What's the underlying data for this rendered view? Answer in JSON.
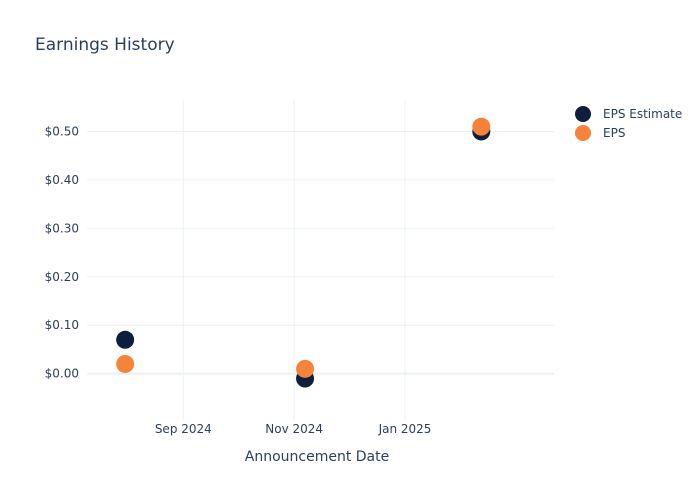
{
  "chart_data": {
    "type": "scatter",
    "title": "Earnings History",
    "xlabel": "Announcement Date",
    "ylabel": "",
    "x_ticks": [
      "Sep 2024",
      "Nov 2024",
      "Jan 2025"
    ],
    "x_tick_dates": [
      "2024-09-01",
      "2024-11-01",
      "2025-01-01"
    ],
    "y_ticks": [
      "$0.00",
      "$0.10",
      "$0.20",
      "$0.30",
      "$0.40",
      "$0.50"
    ],
    "y_tick_values": [
      0.0,
      0.1,
      0.2,
      0.3,
      0.4,
      0.5
    ],
    "xlim": [
      "2024-07-10",
      "2025-03-24"
    ],
    "ylim": [
      -0.075,
      0.565
    ],
    "grid": true,
    "legend_position": "top-right",
    "series": [
      {
        "name": "EPS Estimate",
        "color": "#0d1f3c",
        "points": [
          {
            "x": "2024-07-31",
            "y": 0.07
          },
          {
            "x": "2024-11-07",
            "y": -0.01
          },
          {
            "x": "2025-02-12",
            "y": 0.5
          }
        ]
      },
      {
        "name": "EPS",
        "color": "#f5833a",
        "points": [
          {
            "x": "2024-07-31",
            "y": 0.02
          },
          {
            "x": "2024-11-07",
            "y": 0.01
          },
          {
            "x": "2025-02-12",
            "y": 0.51
          }
        ]
      }
    ]
  }
}
